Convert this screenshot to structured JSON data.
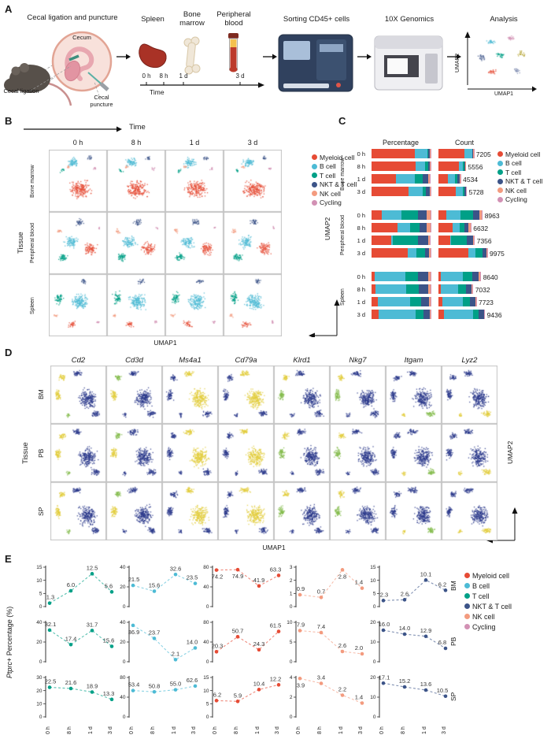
{
  "figure": {
    "labels": {
      "A": "A",
      "B": "B",
      "C": "C",
      "D": "D",
      "E": "E"
    }
  },
  "cell_types": [
    {
      "name": "Myeloid cell",
      "color": "#E64B35"
    },
    {
      "name": "B cell",
      "color": "#4DBBD5"
    },
    {
      "name": "T cell",
      "color": "#00A087"
    },
    {
      "name": "NKT & T cell",
      "color": "#3C5488"
    },
    {
      "name": "NK cell",
      "color": "#F39B7F"
    },
    {
      "name": "Cycling",
      "color": "#D291B4"
    }
  ],
  "panelA": {
    "step1": "Cecal ligation and puncture",
    "cecum": "Cecum",
    "cecal_ligation": "Cecal ligation",
    "cecal_puncture": "Cecal puncture",
    "organ_spleen": "Spleen",
    "organ_bone_marrow": "Bone marrow",
    "organ_peripheral_blood": "Peripheral blood",
    "timeline_ticks": [
      "0 h",
      "8 h",
      "1 d",
      "3 d"
    ],
    "timeline_label": "Time",
    "step_sorting": "Sorting CD45+ cells",
    "step_10x": "10X Genomics",
    "step_analysis": "Analysis",
    "umap_x": "UMAP1",
    "umap_y": "UMAP2"
  },
  "panelB": {
    "time_label": "Time",
    "timepoints": [
      "0 h",
      "8 h",
      "1 d",
      "3 d"
    ],
    "tissues": [
      "Bone marrow",
      "Peripheral blood",
      "Spleen"
    ],
    "tissue_label": "Tissue",
    "umap_x": "UMAP1",
    "umap_y": "UMAP2"
  },
  "panelC": {
    "col_headers": [
      "Percentage",
      "Count"
    ],
    "percentage_order": [
      "Myeloid cell",
      "B cell",
      "T cell",
      "NKT & T cell",
      "NK cell",
      "Cycling"
    ],
    "tissue_groups": [
      {
        "tissue": "Bone marrow",
        "rows": [
          {
            "time": "0 h",
            "count": 7205,
            "percentage": [
              74.2,
              21.5,
              1.3,
              2.3,
              0.9,
              0.3
            ]
          },
          {
            "time": "8 h",
            "count": 5556,
            "percentage": [
              74.9,
              15.6,
              6.0,
              2.6,
              0.7,
              0.2
            ]
          },
          {
            "time": "1 d",
            "count": 4534,
            "percentage": [
              41.9,
              32.6,
              12.5,
              10.1,
              2.8,
              1.0
            ]
          },
          {
            "time": "3 d",
            "count": 5728,
            "percentage": [
              63.3,
              23.5,
              5.6,
              6.2,
              1.4,
              0.4
            ]
          }
        ]
      },
      {
        "tissue": "Peripheral blood",
        "rows": [
          {
            "time": "0 h",
            "count": 8963,
            "percentage": [
              20.3,
              36.9,
              32.1,
              16.0,
              7.9,
              0.4
            ]
          },
          {
            "time": "8 h",
            "count": 6632,
            "percentage": [
              50.7,
              23.7,
              17.4,
              14.0,
              7.4,
              0.4
            ]
          },
          {
            "time": "1 d",
            "count": 7356,
            "percentage": [
              24.3,
              2.1,
              31.7,
              12.9,
              2.6,
              0.5
            ]
          },
          {
            "time": "3 d",
            "count": 9975,
            "percentage": [
              61.5,
              14.0,
              15.6,
              6.8,
              2.0,
              0.3
            ]
          }
        ]
      },
      {
        "tissue": "Spleen",
        "rows": [
          {
            "time": "0 h",
            "count": 8640,
            "percentage": [
              6.2,
              53.4,
              22.5,
              17.1,
              3.9,
              0.5
            ]
          },
          {
            "time": "8 h",
            "count": 7032,
            "percentage": [
              5.9,
              50.8,
              21.6,
              15.2,
              3.4,
              0.6
            ]
          },
          {
            "time": "1 d",
            "count": 7723,
            "percentage": [
              10.4,
              55.0,
              18.9,
              13.6,
              2.2,
              0.5
            ]
          },
          {
            "time": "3 d",
            "count": 9436,
            "percentage": [
              12.2,
              62.6,
              13.3,
              10.5,
              1.4,
              0.5
            ]
          }
        ]
      }
    ]
  },
  "panelD": {
    "genes": [
      "Cd2",
      "Cd3d",
      "Ms4a1",
      "Cd79a",
      "Klrd1",
      "Nkg7",
      "Itgam",
      "Lyz2"
    ],
    "tissues": [
      "BM",
      "PB",
      "SP"
    ],
    "tissue_label": "Tissue",
    "umap_x": "UMAP1",
    "umap_y": "UMAP2"
  },
  "panelE": {
    "ylabel_gene": "Ptprc",
    "ylabel_rest": "+ Percentage (%)",
    "x_ticks": [
      "0 h",
      "8 h",
      "1 d",
      "3 d"
    ],
    "row_labels": [
      "BM",
      "PB",
      "SP"
    ],
    "plots": [
      {
        "tissue": "BM",
        "cell_type": "T cell",
        "ymax": 15,
        "yticks": [
          0,
          5,
          10,
          15
        ],
        "values": [
          1.3,
          6.0,
          12.5,
          5.6
        ],
        "labels": [
          "1.3",
          "6.0",
          "12.5",
          "5.6"
        ]
      },
      {
        "tissue": "BM",
        "cell_type": "B cell",
        "ymax": 40,
        "yticks": [
          0,
          20,
          40
        ],
        "values": [
          21.5,
          15.6,
          32.6,
          23.5
        ],
        "labels": [
          "21.5",
          "15.6",
          "32.6",
          "23.5"
        ]
      },
      {
        "tissue": "BM",
        "cell_type": "Myeloid cell",
        "ymax": 80,
        "yticks": [
          0,
          40,
          80
        ],
        "values": [
          74.2,
          74.9,
          41.9,
          63.3
        ],
        "labels": [
          "74.2",
          "74.9",
          "41.9",
          "63.3"
        ]
      },
      {
        "tissue": "BM",
        "cell_type": "NK cell",
        "ymax": 3,
        "yticks": [
          0,
          1,
          2,
          3
        ],
        "values": [
          0.9,
          0.7,
          2.8,
          1.4
        ],
        "labels": [
          "0.9",
          "0.7",
          "2.8",
          "1.4"
        ]
      },
      {
        "tissue": "BM",
        "cell_type": "NKT & T cell",
        "ymax": 15,
        "yticks": [
          0,
          5,
          10,
          15
        ],
        "values": [
          2.3,
          2.6,
          10.1,
          6.2
        ],
        "labels": [
          "2.3",
          "2.6",
          "10.1",
          "6.2"
        ]
      },
      {
        "tissue": "PB",
        "cell_type": "T cell",
        "ymax": 40,
        "yticks": [
          0,
          20,
          40
        ],
        "values": [
          32.1,
          17.4,
          31.7,
          15.6
        ],
        "labels": [
          "32.1",
          "17.4",
          "31.7",
          "15.6"
        ]
      },
      {
        "tissue": "PB",
        "cell_type": "B cell",
        "ymax": 40,
        "yticks": [
          0,
          20,
          40
        ],
        "values": [
          36.9,
          23.7,
          2.1,
          14.0
        ],
        "labels": [
          "36.9",
          "23.7",
          "2.1",
          "14.0"
        ]
      },
      {
        "tissue": "PB",
        "cell_type": "Myeloid cell",
        "ymax": 80,
        "yticks": [
          0,
          40,
          80
        ],
        "values": [
          20.3,
          50.7,
          24.3,
          61.5
        ],
        "labels": [
          "20.3",
          "50.7",
          "24.3",
          "61.5"
        ]
      },
      {
        "tissue": "PB",
        "cell_type": "NK cell",
        "ymax": 10,
        "yticks": [
          0,
          5,
          10
        ],
        "values": [
          7.9,
          7.4,
          2.6,
          2.0
        ],
        "labels": [
          "7.9",
          "7.4",
          "2.6",
          "2.0"
        ]
      },
      {
        "tissue": "PB",
        "cell_type": "NKT & T cell",
        "ymax": 20,
        "yticks": [
          0,
          10,
          20
        ],
        "values": [
          16.0,
          14.0,
          12.9,
          6.8
        ],
        "labels": [
          "16.0",
          "14.0",
          "12.9",
          "6.8"
        ]
      },
      {
        "tissue": "SP",
        "cell_type": "T cell",
        "ymax": 30,
        "yticks": [
          0,
          10,
          20,
          30
        ],
        "values": [
          22.5,
          21.6,
          18.9,
          13.3
        ],
        "labels": [
          "22.5",
          "21.6",
          "18.9",
          "13.3"
        ]
      },
      {
        "tissue": "SP",
        "cell_type": "B cell",
        "ymax": 80,
        "yticks": [
          0,
          40,
          80
        ],
        "values": [
          53.4,
          50.8,
          55.0,
          62.6
        ],
        "labels": [
          "53.4",
          "50.8",
          "55.0",
          "62.6"
        ]
      },
      {
        "tissue": "SP",
        "cell_type": "Myeloid cell",
        "ymax": 15,
        "yticks": [
          0,
          5,
          10,
          15
        ],
        "values": [
          6.2,
          5.9,
          10.4,
          12.2
        ],
        "labels": [
          "6.2",
          "5.9",
          "10.4",
          "12.2"
        ]
      },
      {
        "tissue": "SP",
        "cell_type": "NK cell",
        "ymax": 4,
        "yticks": [
          0,
          2,
          4
        ],
        "values": [
          3.9,
          3.4,
          2.2,
          1.4
        ],
        "labels": [
          "3.9",
          "3.4",
          "2.2",
          "1.4"
        ]
      },
      {
        "tissue": "SP",
        "cell_type": "NKT & T cell",
        "ymax": 20,
        "yticks": [
          0,
          10,
          20
        ],
        "values": [
          17.1,
          15.2,
          13.6,
          10.5
        ],
        "labels": [
          "17.1",
          "15.2",
          "13.6",
          "10.5"
        ]
      }
    ]
  }
}
